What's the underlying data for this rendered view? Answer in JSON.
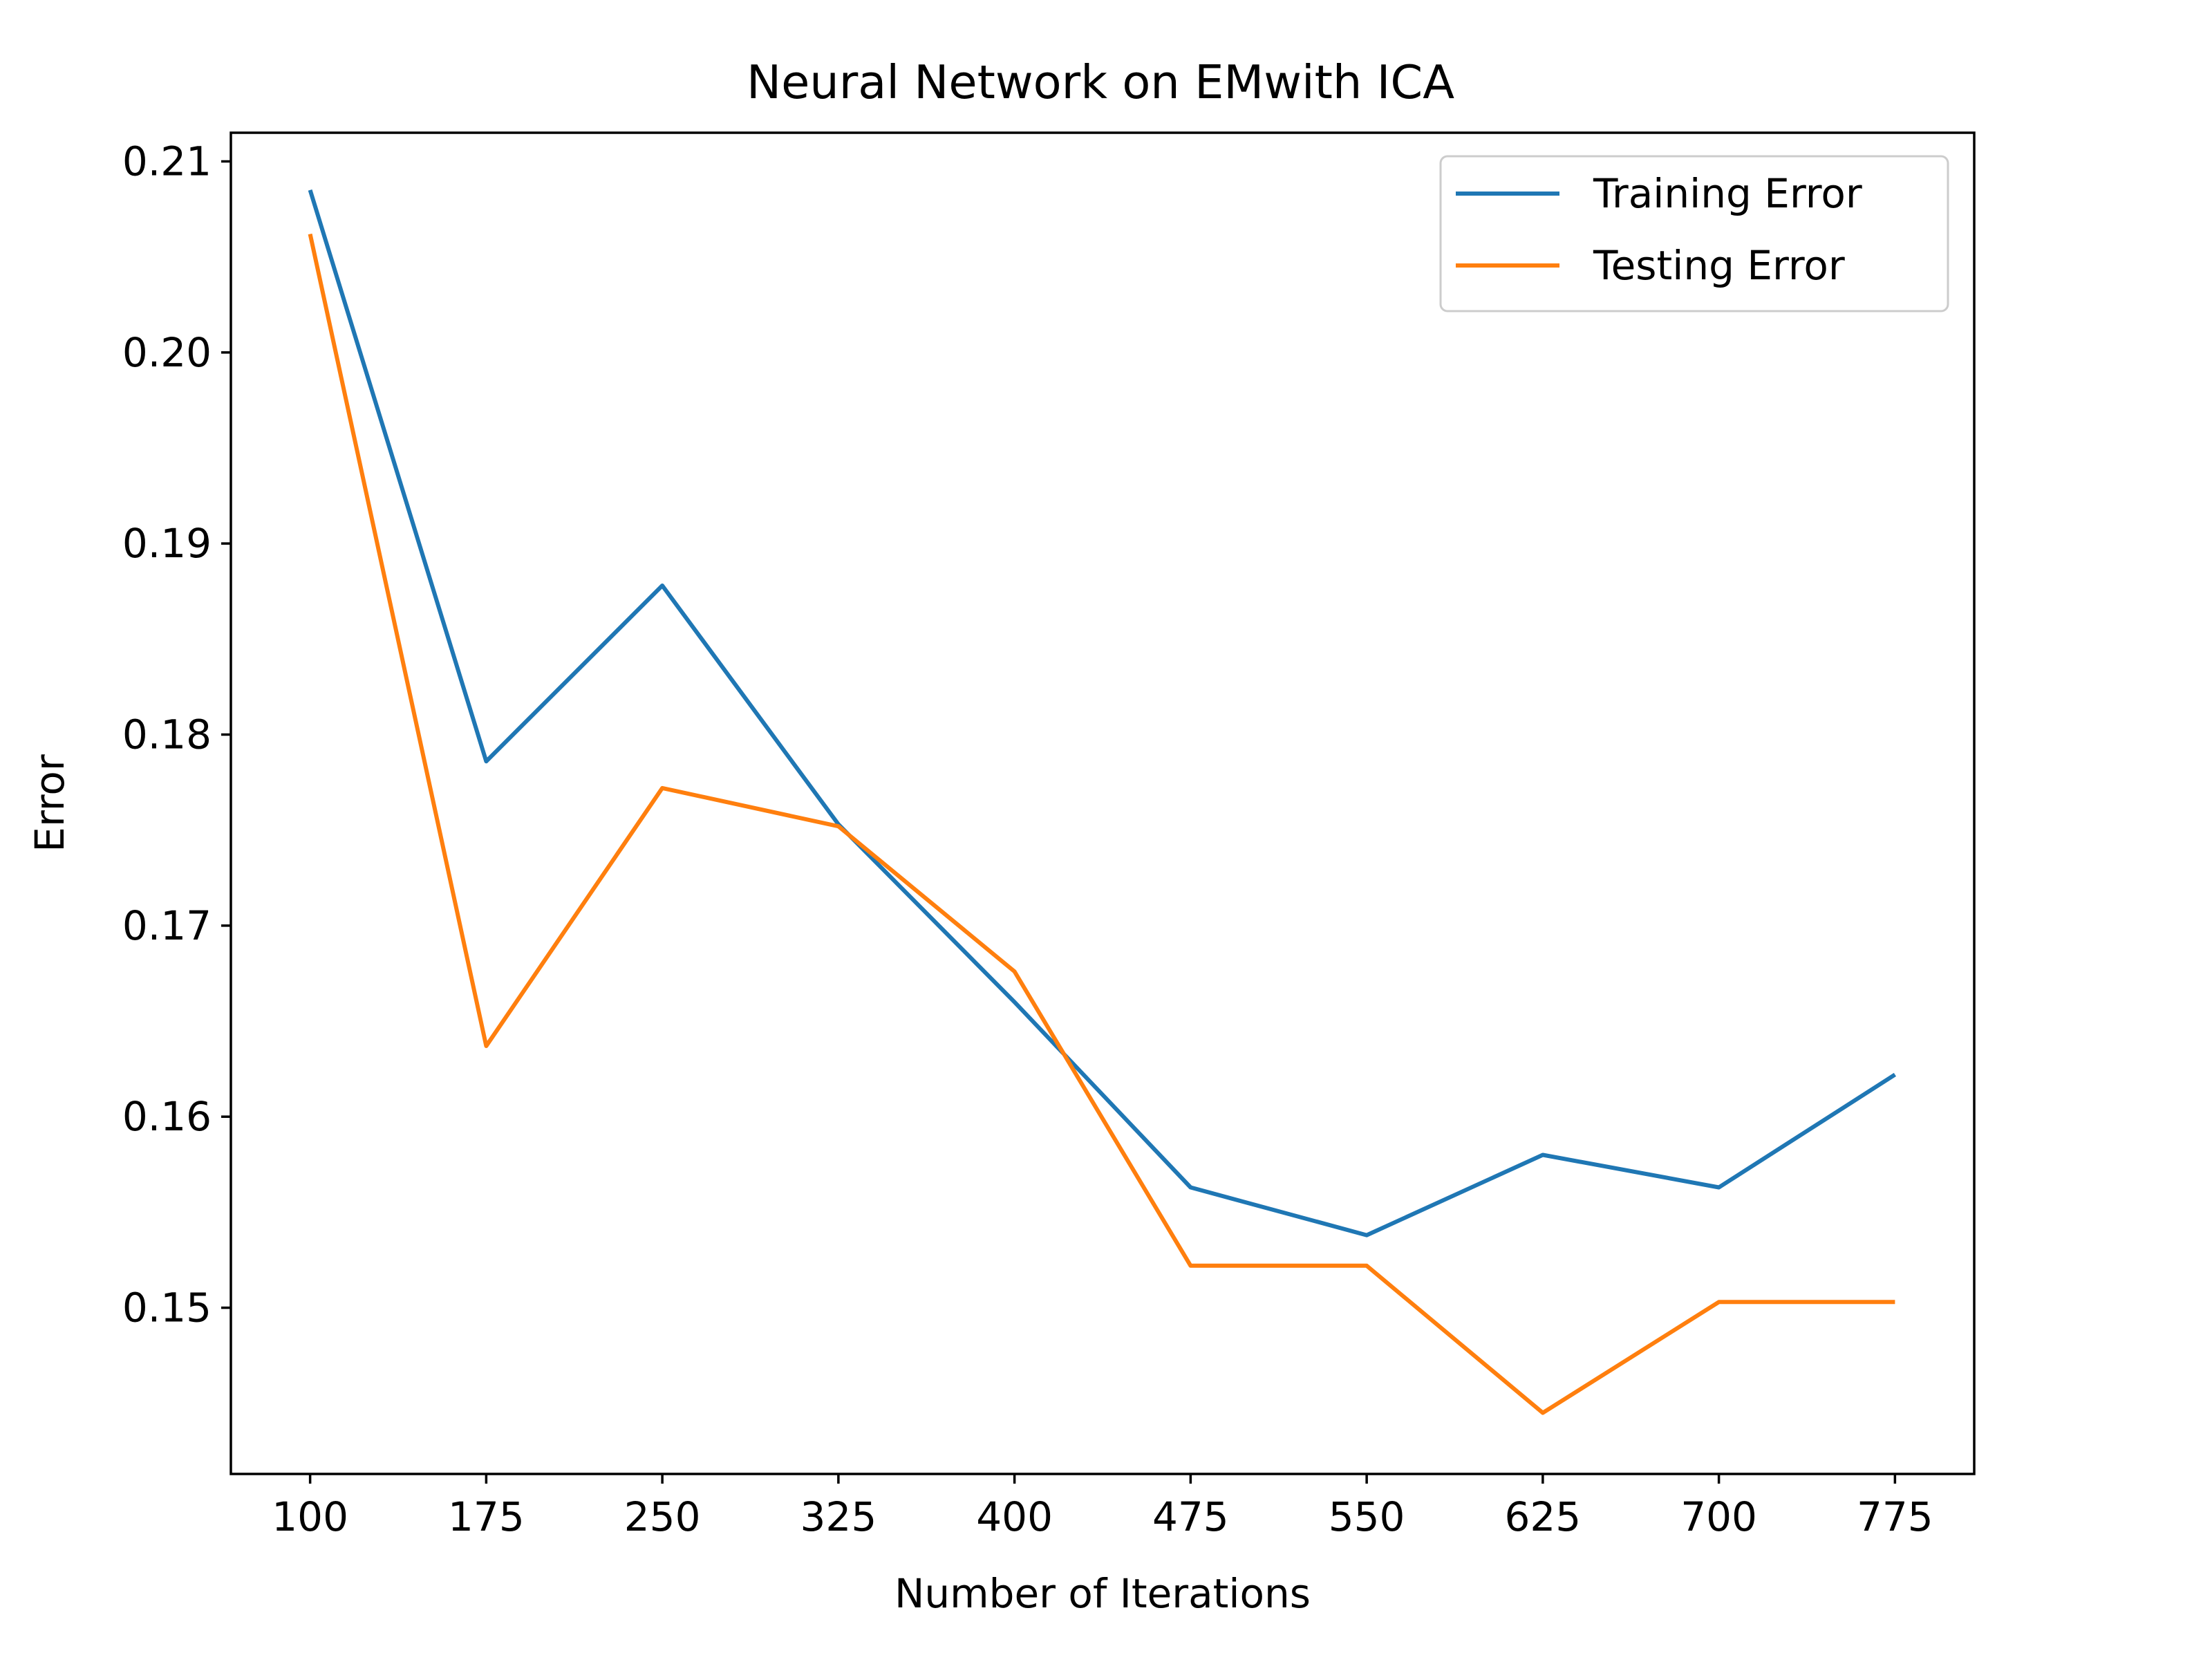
{
  "chart_data": {
    "type": "line",
    "title": "Neural Network on EMwith ICA",
    "xlabel": "Number of Iterations",
    "ylabel": "Error",
    "x": [
      100,
      175,
      250,
      325,
      400,
      475,
      550,
      625,
      700,
      775
    ],
    "xticks": [
      "100",
      "175",
      "250",
      "325",
      "400",
      "475",
      "550",
      "625",
      "700",
      "775"
    ],
    "yticks": [
      "0.15",
      "0.16",
      "0.17",
      "0.18",
      "0.19",
      "0.20",
      "0.21"
    ],
    "ytick_values": [
      0.15,
      0.16,
      0.17,
      0.18,
      0.19,
      0.2,
      0.21
    ],
    "xlim": [
      66.25,
      808.75
    ],
    "ylim": [
      0.1413,
      0.2115
    ],
    "grid": false,
    "legend_position": "top-right",
    "series": [
      {
        "name": "Training Error",
        "color": "#1f77b4",
        "values": [
          0.2085,
          0.1786,
          0.1878,
          0.1753,
          0.166,
          0.1563,
          0.1538,
          0.158,
          0.1563,
          0.1622
        ]
      },
      {
        "name": "Testing Error",
        "color": "#ff7f0e",
        "values": [
          0.2062,
          0.1637,
          0.1772,
          0.1752,
          0.1676,
          0.1522,
          0.1522,
          0.1445,
          0.1503,
          0.1503
        ]
      }
    ]
  }
}
